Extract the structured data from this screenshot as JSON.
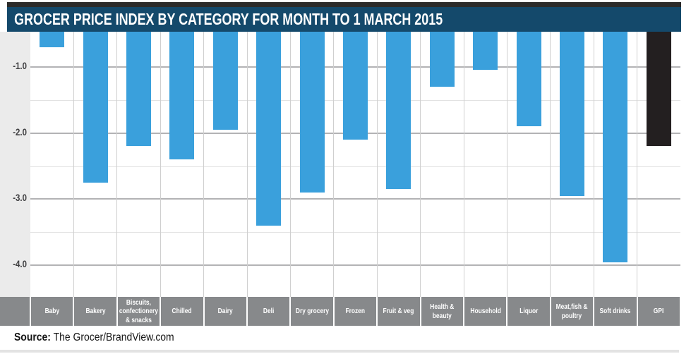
{
  "source": {
    "label": "Source:",
    "text": "The Grocer/BrandView.com"
  },
  "colors": {
    "title_bg": "#14496b",
    "title_text": "#ffffff",
    "top_strip": "#2c2b2a",
    "bar_blue": "#3aa0dc",
    "bar_black": "#231f20",
    "band_bg": "#87898b",
    "band_text": "#ffffff",
    "axis_bg": "#ebebeb",
    "grid_major": "#b3b3b5",
    "grid_minor": "#e2e2e2",
    "grid_vertical": "#cfcfcf",
    "tick_text": "#3f3f41",
    "bottom_line": "#e3e3e3"
  },
  "chart_data": {
    "type": "bar",
    "title": "GROCER PRICE INDEX BY CATEGORY FOR MONTH TO 1 MARCH 2015",
    "categories": [
      "Baby",
      "Bakery",
      "Biscuits,\nconfectionery\n& snacks",
      "Chilled",
      "Dairy",
      "Deli",
      "Dry grocery",
      "Frozen",
      "Fruit & veg",
      "Health &\nbeauty",
      "Household",
      "Liquor",
      "Meat,fish &\npoultry",
      "Soft drinks",
      "GPI"
    ],
    "values": [
      -0.7,
      -2.75,
      -2.2,
      -2.4,
      -1.95,
      -3.4,
      -2.9,
      -2.1,
      -2.85,
      -1.3,
      -1.05,
      -1.9,
      -2.95,
      -3.95,
      -2.2
    ],
    "highlight_category": "GPI",
    "highlight_index": 14,
    "bar_color": "#3aa0dc",
    "highlight_color": "#231f20",
    "xlabel": "",
    "ylabel": "",
    "yticks": [
      -1.0,
      -2.0,
      -3.0,
      -4.0
    ],
    "ytick_labels": [
      "-1.0",
      "-2.0",
      "-3.0",
      "-4.0"
    ],
    "minor_yticks": [
      -1.5,
      -2.5,
      -3.5
    ],
    "ylim_visible": [
      -0.47,
      -4.47
    ],
    "grid": "horizontal major+minor, vertical category separators",
    "legend": "none"
  }
}
